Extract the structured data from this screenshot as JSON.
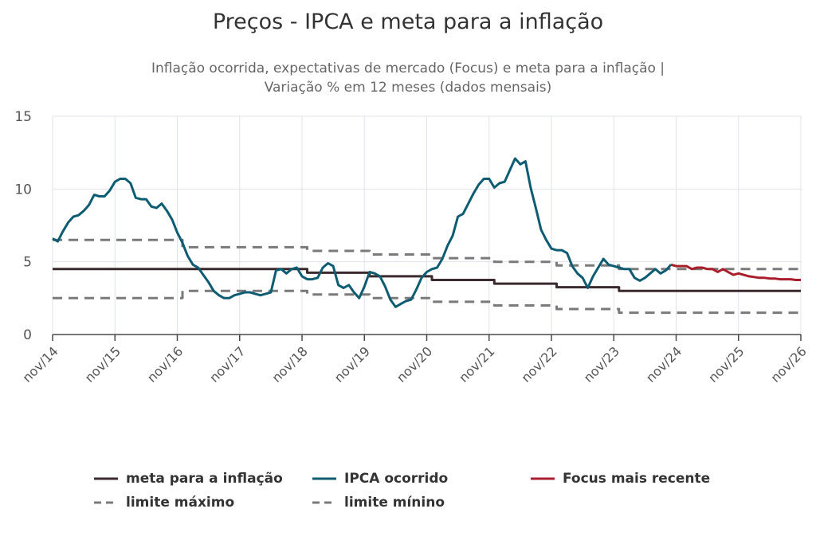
{
  "title": "Preços - IPCA e meta para a inflação",
  "subtitle": [
    "Inflação ocorrida, expectativas de mercado (Focus) e meta para a inflação |",
    "Variação % em 12 meses (dados mensais)"
  ],
  "colors": {
    "meta": "#3b2a2e",
    "ipca": "#0e5c72",
    "focus": "#a81e2a",
    "limits": "#7a7a7a",
    "grid": "#dfe3ea",
    "axis": "#4a4a4a"
  },
  "chart_data": {
    "type": "line",
    "x_range": [
      "2014-11",
      "2026-11"
    ],
    "ylim": [
      0,
      15
    ],
    "yticks": [
      0,
      5,
      10,
      15
    ],
    "xticks": [
      "nov/14",
      "nov/15",
      "nov/16",
      "nov/17",
      "nov/18",
      "nov/19",
      "nov/20",
      "nov/21",
      "nov/22",
      "nov/23",
      "nov/24",
      "nov/25",
      "nov/26"
    ],
    "grid": true,
    "legend_position": "bottom",
    "series": [
      {
        "name": "meta para a inflação",
        "style": "solid",
        "points": [
          [
            "2014-11",
            4.5
          ],
          [
            "2018-12",
            4.5
          ],
          [
            "2018-12",
            4.25
          ],
          [
            "2019-12",
            4.25
          ],
          [
            "2019-12",
            4.0
          ],
          [
            "2020-12",
            4.0
          ],
          [
            "2020-12",
            3.75
          ],
          [
            "2021-12",
            3.75
          ],
          [
            "2021-12",
            3.5
          ],
          [
            "2022-12",
            3.5
          ],
          [
            "2022-12",
            3.25
          ],
          [
            "2023-12",
            3.25
          ],
          [
            "2023-12",
            3.0
          ],
          [
            "2026-11",
            3.0
          ]
        ]
      },
      {
        "name": "IPCA ocorrido",
        "style": "solid",
        "points": [
          [
            "2014-11",
            6.6
          ],
          [
            "2014-12",
            6.4
          ],
          [
            "2015-01",
            7.1
          ],
          [
            "2015-02",
            7.7
          ],
          [
            "2015-03",
            8.1
          ],
          [
            "2015-04",
            8.2
          ],
          [
            "2015-05",
            8.5
          ],
          [
            "2015-06",
            8.9
          ],
          [
            "2015-07",
            9.6
          ],
          [
            "2015-08",
            9.5
          ],
          [
            "2015-09",
            9.5
          ],
          [
            "2015-10",
            9.9
          ],
          [
            "2015-11",
            10.5
          ],
          [
            "2015-12",
            10.7
          ],
          [
            "2016-01",
            10.7
          ],
          [
            "2016-02",
            10.4
          ],
          [
            "2016-03",
            9.4
          ],
          [
            "2016-04",
            9.3
          ],
          [
            "2016-05",
            9.3
          ],
          [
            "2016-06",
            8.8
          ],
          [
            "2016-07",
            8.7
          ],
          [
            "2016-08",
            9.0
          ],
          [
            "2016-09",
            8.5
          ],
          [
            "2016-10",
            7.9
          ],
          [
            "2016-11",
            7.0
          ],
          [
            "2016-12",
            6.3
          ],
          [
            "2017-01",
            5.4
          ],
          [
            "2017-02",
            4.8
          ],
          [
            "2017-03",
            4.6
          ],
          [
            "2017-04",
            4.1
          ],
          [
            "2017-05",
            3.6
          ],
          [
            "2017-06",
            3.0
          ],
          [
            "2017-07",
            2.7
          ],
          [
            "2017-08",
            2.5
          ],
          [
            "2017-09",
            2.5
          ],
          [
            "2017-10",
            2.7
          ],
          [
            "2017-11",
            2.8
          ],
          [
            "2017-12",
            2.9
          ],
          [
            "2018-01",
            2.9
          ],
          [
            "2018-02",
            2.8
          ],
          [
            "2018-03",
            2.7
          ],
          [
            "2018-04",
            2.8
          ],
          [
            "2018-05",
            2.9
          ],
          [
            "2018-06",
            4.4
          ],
          [
            "2018-07",
            4.5
          ],
          [
            "2018-08",
            4.2
          ],
          [
            "2018-09",
            4.5
          ],
          [
            "2018-10",
            4.6
          ],
          [
            "2018-11",
            4.0
          ],
          [
            "2018-12",
            3.8
          ],
          [
            "2019-01",
            3.8
          ],
          [
            "2019-02",
            3.9
          ],
          [
            "2019-03",
            4.6
          ],
          [
            "2019-04",
            4.9
          ],
          [
            "2019-05",
            4.7
          ],
          [
            "2019-06",
            3.4
          ],
          [
            "2019-07",
            3.2
          ],
          [
            "2019-08",
            3.4
          ],
          [
            "2019-09",
            2.9
          ],
          [
            "2019-10",
            2.5
          ],
          [
            "2019-11",
            3.3
          ],
          [
            "2019-12",
            4.3
          ],
          [
            "2020-01",
            4.2
          ],
          [
            "2020-02",
            4.0
          ],
          [
            "2020-03",
            3.3
          ],
          [
            "2020-04",
            2.4
          ],
          [
            "2020-05",
            1.9
          ],
          [
            "2020-06",
            2.1
          ],
          [
            "2020-07",
            2.3
          ],
          [
            "2020-08",
            2.4
          ],
          [
            "2020-09",
            3.1
          ],
          [
            "2020-10",
            3.9
          ],
          [
            "2020-11",
            4.3
          ],
          [
            "2020-12",
            4.5
          ],
          [
            "2021-01",
            4.6
          ],
          [
            "2021-02",
            5.2
          ],
          [
            "2021-03",
            6.1
          ],
          [
            "2021-04",
            6.8
          ],
          [
            "2021-05",
            8.1
          ],
          [
            "2021-06",
            8.3
          ],
          [
            "2021-07",
            9.0
          ],
          [
            "2021-08",
            9.7
          ],
          [
            "2021-09",
            10.3
          ],
          [
            "2021-10",
            10.7
          ],
          [
            "2021-11",
            10.7
          ],
          [
            "2021-12",
            10.1
          ],
          [
            "2022-01",
            10.4
          ],
          [
            "2022-02",
            10.5
          ],
          [
            "2022-03",
            11.3
          ],
          [
            "2022-04",
            12.1
          ],
          [
            "2022-05",
            11.7
          ],
          [
            "2022-06",
            11.9
          ],
          [
            "2022-07",
            10.1
          ],
          [
            "2022-08",
            8.7
          ],
          [
            "2022-09",
            7.2
          ],
          [
            "2022-10",
            6.5
          ],
          [
            "2022-11",
            5.9
          ],
          [
            "2022-12",
            5.8
          ],
          [
            "2023-01",
            5.8
          ],
          [
            "2023-02",
            5.6
          ],
          [
            "2023-03",
            4.7
          ],
          [
            "2023-04",
            4.2
          ],
          [
            "2023-05",
            3.9
          ],
          [
            "2023-06",
            3.2
          ],
          [
            "2023-07",
            4.0
          ],
          [
            "2023-08",
            4.6
          ],
          [
            "2023-09",
            5.2
          ],
          [
            "2023-10",
            4.8
          ],
          [
            "2023-11",
            4.7
          ],
          [
            "2023-12",
            4.6
          ],
          [
            "2024-01",
            4.5
          ],
          [
            "2024-02",
            4.5
          ],
          [
            "2024-03",
            3.9
          ],
          [
            "2024-04",
            3.7
          ],
          [
            "2024-05",
            3.9
          ],
          [
            "2024-06",
            4.2
          ],
          [
            "2024-07",
            4.5
          ],
          [
            "2024-08",
            4.2
          ],
          [
            "2024-09",
            4.4
          ],
          [
            "2024-10",
            4.8
          ]
        ]
      },
      {
        "name": "Focus mais recente",
        "style": "solid",
        "points": [
          [
            "2024-10",
            4.8
          ],
          [
            "2024-11",
            4.7
          ],
          [
            "2024-12",
            4.7
          ],
          [
            "2025-01",
            4.7
          ],
          [
            "2025-02",
            4.5
          ],
          [
            "2025-03",
            4.6
          ],
          [
            "2025-04",
            4.6
          ],
          [
            "2025-05",
            4.5
          ],
          [
            "2025-06",
            4.5
          ],
          [
            "2025-07",
            4.3
          ],
          [
            "2025-08",
            4.5
          ],
          [
            "2025-09",
            4.3
          ],
          [
            "2025-10",
            4.1
          ],
          [
            "2025-11",
            4.2
          ],
          [
            "2025-12",
            4.1
          ],
          [
            "2026-01",
            4.0
          ],
          [
            "2026-02",
            3.95
          ],
          [
            "2026-03",
            3.9
          ],
          [
            "2026-04",
            3.9
          ],
          [
            "2026-05",
            3.85
          ],
          [
            "2026-06",
            3.85
          ],
          [
            "2026-07",
            3.8
          ],
          [
            "2026-08",
            3.8
          ],
          [
            "2026-09",
            3.8
          ],
          [
            "2026-10",
            3.75
          ],
          [
            "2026-11",
            3.75
          ]
        ]
      },
      {
        "name": "limite máximo",
        "style": "dashed",
        "points": [
          [
            "2014-11",
            6.5
          ],
          [
            "2016-12",
            6.5
          ],
          [
            "2016-12",
            6.0
          ],
          [
            "2018-12",
            6.0
          ],
          [
            "2018-12",
            5.75
          ],
          [
            "2019-12",
            5.75
          ],
          [
            "2019-12",
            5.5
          ],
          [
            "2020-12",
            5.5
          ],
          [
            "2020-12",
            5.25
          ],
          [
            "2021-12",
            5.25
          ],
          [
            "2021-12",
            5.0
          ],
          [
            "2022-12",
            5.0
          ],
          [
            "2022-12",
            4.75
          ],
          [
            "2023-12",
            4.75
          ],
          [
            "2023-12",
            4.5
          ],
          [
            "2026-11",
            4.5
          ]
        ]
      },
      {
        "name": "limite mínino",
        "style": "dashed",
        "points": [
          [
            "2014-11",
            2.5
          ],
          [
            "2016-12",
            2.5
          ],
          [
            "2016-12",
            3.0
          ],
          [
            "2018-12",
            3.0
          ],
          [
            "2018-12",
            2.75
          ],
          [
            "2019-12",
            2.75
          ],
          [
            "2019-12",
            2.5
          ],
          [
            "2020-12",
            2.5
          ],
          [
            "2020-12",
            2.25
          ],
          [
            "2021-12",
            2.25
          ],
          [
            "2021-12",
            2.0
          ],
          [
            "2022-12",
            2.0
          ],
          [
            "2022-12",
            1.75
          ],
          [
            "2023-12",
            1.75
          ],
          [
            "2023-12",
            1.5
          ],
          [
            "2026-11",
            1.5
          ]
        ]
      }
    ]
  }
}
